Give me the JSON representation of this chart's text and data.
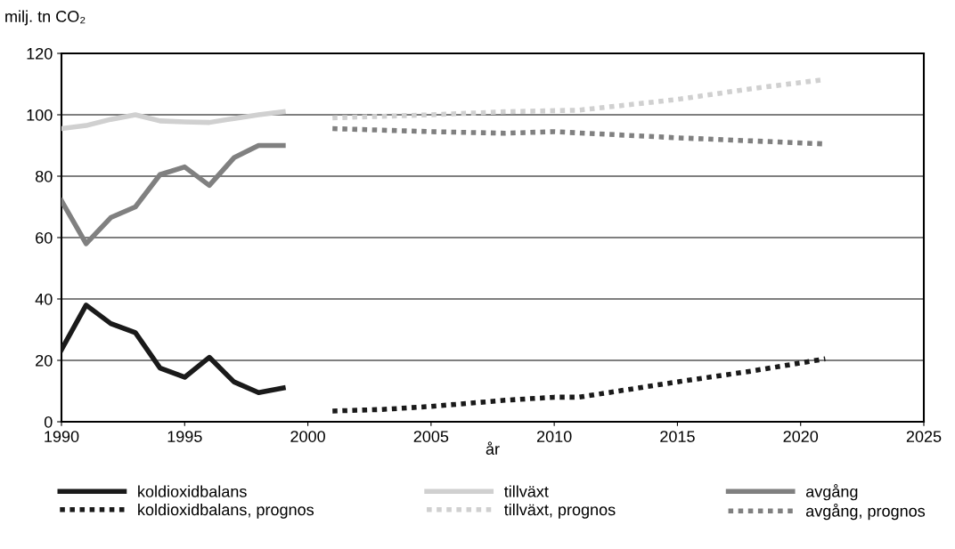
{
  "chart_data": {
    "type": "line",
    "ylabel": "milj. tn CO₂",
    "xlabel": "år",
    "xlim": [
      1990,
      2025
    ],
    "xticks": [
      1990,
      1995,
      2000,
      2005,
      2010,
      2015,
      2020,
      2025
    ],
    "ylim": [
      0,
      120
    ],
    "yticks": [
      0,
      20,
      40,
      60,
      80,
      100,
      120
    ],
    "grid": "y",
    "legend": "bottom",
    "marker": "none",
    "series": [
      {
        "name": "koldioxidbalans",
        "color": "#1a1a1a",
        "line_style": "solid",
        "x": [
          1990,
          1991,
          1992,
          1993,
          1994,
          1995,
          1996,
          1997,
          1998,
          1999
        ],
        "values": [
          23.5,
          38,
          32,
          29,
          17.5,
          14.5,
          21,
          13,
          9.5,
          11
        ]
      },
      {
        "name": "koldioxidbalans, prognos",
        "color": "#1a1a1a",
        "line_style": "dotted",
        "x": [
          2001,
          2003,
          2005,
          2008,
          2010,
          2011,
          2015,
          2018,
          2021
        ],
        "values": [
          3.5,
          4,
          5,
          7,
          8,
          8,
          13,
          16.5,
          20.5
        ]
      },
      {
        "name": "tillväxt",
        "color": "#d0d0d0",
        "line_style": "solid",
        "x": [
          1990,
          1991,
          1992,
          1993,
          1994,
          1995,
          1996,
          1997,
          1998,
          1999
        ],
        "values": [
          95.5,
          96.5,
          98.5,
          100,
          98,
          97.7,
          97.5,
          98.8,
          100,
          101
        ]
      },
      {
        "name": "tillväxt, prognos",
        "color": "#d0d0d0",
        "line_style": "dotted",
        "x": [
          2001,
          2005,
          2008,
          2011,
          2015,
          2018,
          2021
        ],
        "values": [
          99,
          100,
          101,
          101.5,
          105,
          108.5,
          111.5
        ]
      },
      {
        "name": "avgång",
        "color": "#808080",
        "line_style": "solid",
        "x": [
          1990,
          1991,
          1992,
          1993,
          1994,
          1995,
          1996,
          1997,
          1998,
          1999
        ],
        "values": [
          72,
          58,
          66.5,
          70,
          80.5,
          83,
          77,
          86,
          90,
          90
        ]
      },
      {
        "name": "avgång, prognos",
        "color": "#808080",
        "line_style": "dotted",
        "x": [
          2001,
          2005,
          2008,
          2010,
          2015,
          2021
        ],
        "values": [
          95.5,
          94.5,
          94,
          94.5,
          92.5,
          90.5
        ]
      }
    ]
  }
}
